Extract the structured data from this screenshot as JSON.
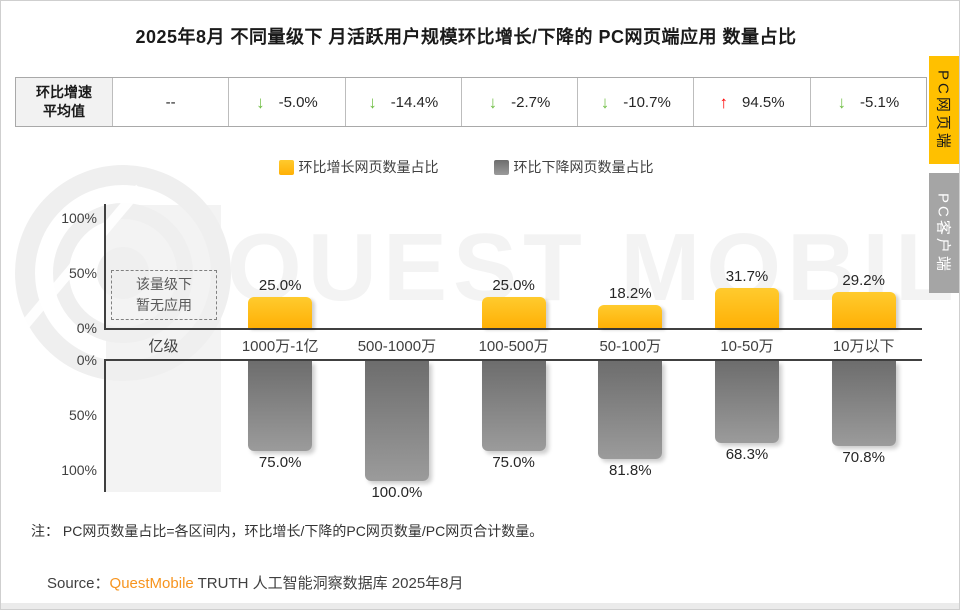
{
  "title": "2025年8月 不同量级下 月活跃用户规模环比增长/下降的 PC网页端应用 数量占比",
  "summary_table": {
    "row_header_line1": "环比增速",
    "row_header_line2": "平均值",
    "cells": [
      {
        "text": "--",
        "arrow": "none"
      },
      {
        "text": "-5.0%",
        "arrow": "down"
      },
      {
        "text": "-14.4%",
        "arrow": "down"
      },
      {
        "text": "-2.7%",
        "arrow": "down"
      },
      {
        "text": "-10.7%",
        "arrow": "down"
      },
      {
        "text": "94.5%",
        "arrow": "up"
      },
      {
        "text": "-5.1%",
        "arrow": "down"
      }
    ]
  },
  "legend": {
    "growth_label": "环比增长网页数量占比",
    "decline_label": "环比下降网页数量占比"
  },
  "chart_data": {
    "type": "bar",
    "orientation": "mirrored-vertical",
    "categories": [
      "亿级",
      "1000万-1亿",
      "500-1000万",
      "100-500万",
      "50-100万",
      "10-50万",
      "10万以下"
    ],
    "series": [
      {
        "name": "环比增长网页数量占比",
        "color": "#FFC000",
        "direction": "up",
        "values": [
          null,
          25.0,
          0.0,
          25.0,
          18.2,
          31.7,
          29.2
        ]
      },
      {
        "name": "环比下降网页数量占比",
        "color": "#808080",
        "direction": "down",
        "values": [
          null,
          75.0,
          100.0,
          75.0,
          81.8,
          68.3,
          70.8
        ]
      }
    ],
    "avg_growth_rate_row": [
      "--",
      "-5.0%",
      "-14.4%",
      "-2.7%",
      "-10.7%",
      "94.5%",
      "-5.1%"
    ],
    "y_axis": {
      "top_ticks": [
        "100%",
        "50%",
        "0%"
      ],
      "bottom_ticks": [
        "0%",
        "50%",
        "100%"
      ],
      "top_range": [
        0,
        100
      ],
      "bottom_range": [
        0,
        100
      ],
      "grid": false
    },
    "no_data_label_line1": "该量级下",
    "no_data_label_line2": "暂无应用"
  },
  "side_tabs": [
    {
      "label": "PC网页端",
      "active": true,
      "color": "#FFC000"
    },
    {
      "label": "PC客户端",
      "active": false,
      "color": "#A5A5A5"
    }
  ],
  "note": "注： PC网页数量占比=各区间内，环比增长/下降的PC网页数量/PC网页合计数量。",
  "source": {
    "label": "Source：",
    "brand": "QuestMobile",
    "rest": " TRUTH 人工智能洞察数据库 2025年8月"
  },
  "watermark": {
    "text": "QUEST MOBILE"
  },
  "colors": {
    "growth": "#FFC000",
    "decline": "#808080",
    "arrow_up": "#FF0000",
    "arrow_down": "#6FBE44"
  }
}
